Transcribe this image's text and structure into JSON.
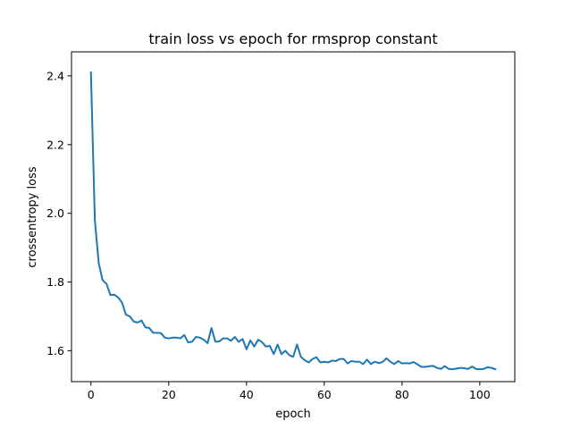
{
  "chart_data": {
    "type": "line",
    "title": "train loss vs epoch for rmsprop constant",
    "xlabel": "epoch",
    "ylabel": "crossentropy loss",
    "xlim": [
      -5,
      109
    ],
    "ylim": [
      1.51,
      2.47
    ],
    "xticks": [
      0,
      20,
      40,
      60,
      80,
      100
    ],
    "yticks": [
      1.6,
      1.8,
      2.0,
      2.2,
      2.4
    ],
    "grid": false,
    "line_color": "#1f77b4",
    "series": [
      {
        "x": [
          0,
          1,
          2,
          3,
          4,
          5,
          6,
          7,
          8,
          9,
          10,
          11,
          12,
          13,
          14,
          15,
          16,
          17,
          18,
          19,
          20,
          21,
          22,
          23,
          24,
          25,
          26,
          27,
          28,
          29,
          30,
          31,
          32,
          33,
          34,
          35,
          36,
          37,
          38,
          39,
          40,
          41,
          42,
          43,
          44,
          45,
          46,
          47,
          48,
          49,
          50,
          51,
          52,
          53,
          54,
          55,
          56,
          57,
          58,
          59,
          60,
          61,
          62,
          63,
          64,
          65,
          66,
          67,
          68,
          69,
          70,
          71,
          72,
          73,
          74,
          75,
          76,
          77,
          78,
          79,
          80,
          81,
          82,
          83,
          84,
          85,
          86,
          87,
          88,
          89,
          90,
          91,
          92,
          93,
          94,
          95,
          96,
          97,
          98,
          99,
          100,
          101,
          102,
          103,
          104
        ],
        "y": [
          2.41,
          1.98,
          1.855,
          1.805,
          1.795,
          1.762,
          1.763,
          1.755,
          1.74,
          1.705,
          1.7,
          1.685,
          1.682,
          1.688,
          1.668,
          1.666,
          1.652,
          1.652,
          1.651,
          1.638,
          1.636,
          1.638,
          1.638,
          1.636,
          1.646,
          1.624,
          1.626,
          1.64,
          1.638,
          1.632,
          1.622,
          1.666,
          1.626,
          1.627,
          1.636,
          1.636,
          1.629,
          1.64,
          1.626,
          1.634,
          1.604,
          1.63,
          1.612,
          1.632,
          1.625,
          1.612,
          1.614,
          1.59,
          1.618,
          1.59,
          1.6,
          1.587,
          1.582,
          1.618,
          1.582,
          1.572,
          1.566,
          1.576,
          1.581,
          1.566,
          1.568,
          1.566,
          1.571,
          1.57,
          1.576,
          1.576,
          1.563,
          1.57,
          1.568,
          1.568,
          1.561,
          1.574,
          1.561,
          1.568,
          1.564,
          1.567,
          1.578,
          1.568,
          1.561,
          1.57,
          1.563,
          1.564,
          1.563,
          1.567,
          1.56,
          1.553,
          1.553,
          1.555,
          1.556,
          1.55,
          1.547,
          1.555,
          1.547,
          1.546,
          1.548,
          1.55,
          1.549,
          1.547,
          1.554,
          1.547,
          1.546,
          1.547,
          1.552,
          1.55,
          1.546
        ]
      }
    ]
  }
}
